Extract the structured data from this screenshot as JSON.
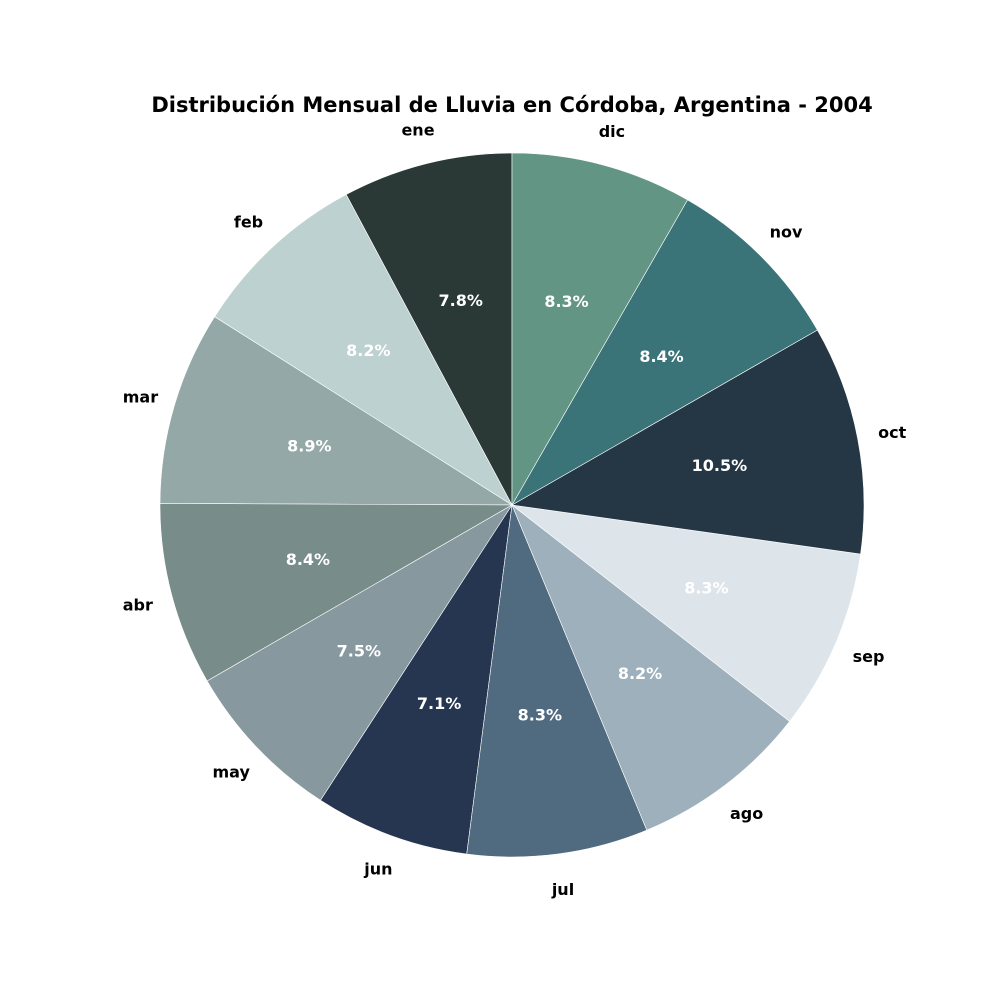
{
  "chart_data": {
    "type": "pie",
    "title": "Distribución Mensual de Lluvia en Córdoba, Argentina - 2004",
    "start": "top",
    "direction": "counterclockwise",
    "slices": [
      {
        "label": "ene",
        "value": 7.8,
        "pct_label": "7.8%",
        "color": "#2a3836"
      },
      {
        "label": "feb",
        "value": 8.2,
        "pct_label": "8.2%",
        "color": "#bed1d1"
      },
      {
        "label": "mar",
        "value": 8.9,
        "pct_label": "8.9%",
        "color": "#93a8a7"
      },
      {
        "label": "abr",
        "value": 8.4,
        "pct_label": "8.4%",
        "color": "#788c8a"
      },
      {
        "label": "may",
        "value": 7.5,
        "pct_label": "7.5%",
        "color": "#87989f"
      },
      {
        "label": "jun",
        "value": 7.1,
        "pct_label": "7.1%",
        "color": "#263650"
      },
      {
        "label": "jul",
        "value": 8.3,
        "pct_label": "8.3%",
        "color": "#506b80"
      },
      {
        "label": "ago",
        "value": 8.2,
        "pct_label": "8.2%",
        "color": "#9db0bc"
      },
      {
        "label": "sep",
        "value": 8.3,
        "pct_label": "8.3%",
        "color": "#dde5eb"
      },
      {
        "label": "oct",
        "value": 10.5,
        "pct_label": "10.5%",
        "color": "#253744"
      },
      {
        "label": "nov",
        "value": 8.4,
        "pct_label": "8.4%",
        "color": "#3a7478"
      },
      {
        "label": "dic",
        "value": 8.3,
        "pct_label": "8.3%",
        "color": "#639584"
      }
    ]
  }
}
